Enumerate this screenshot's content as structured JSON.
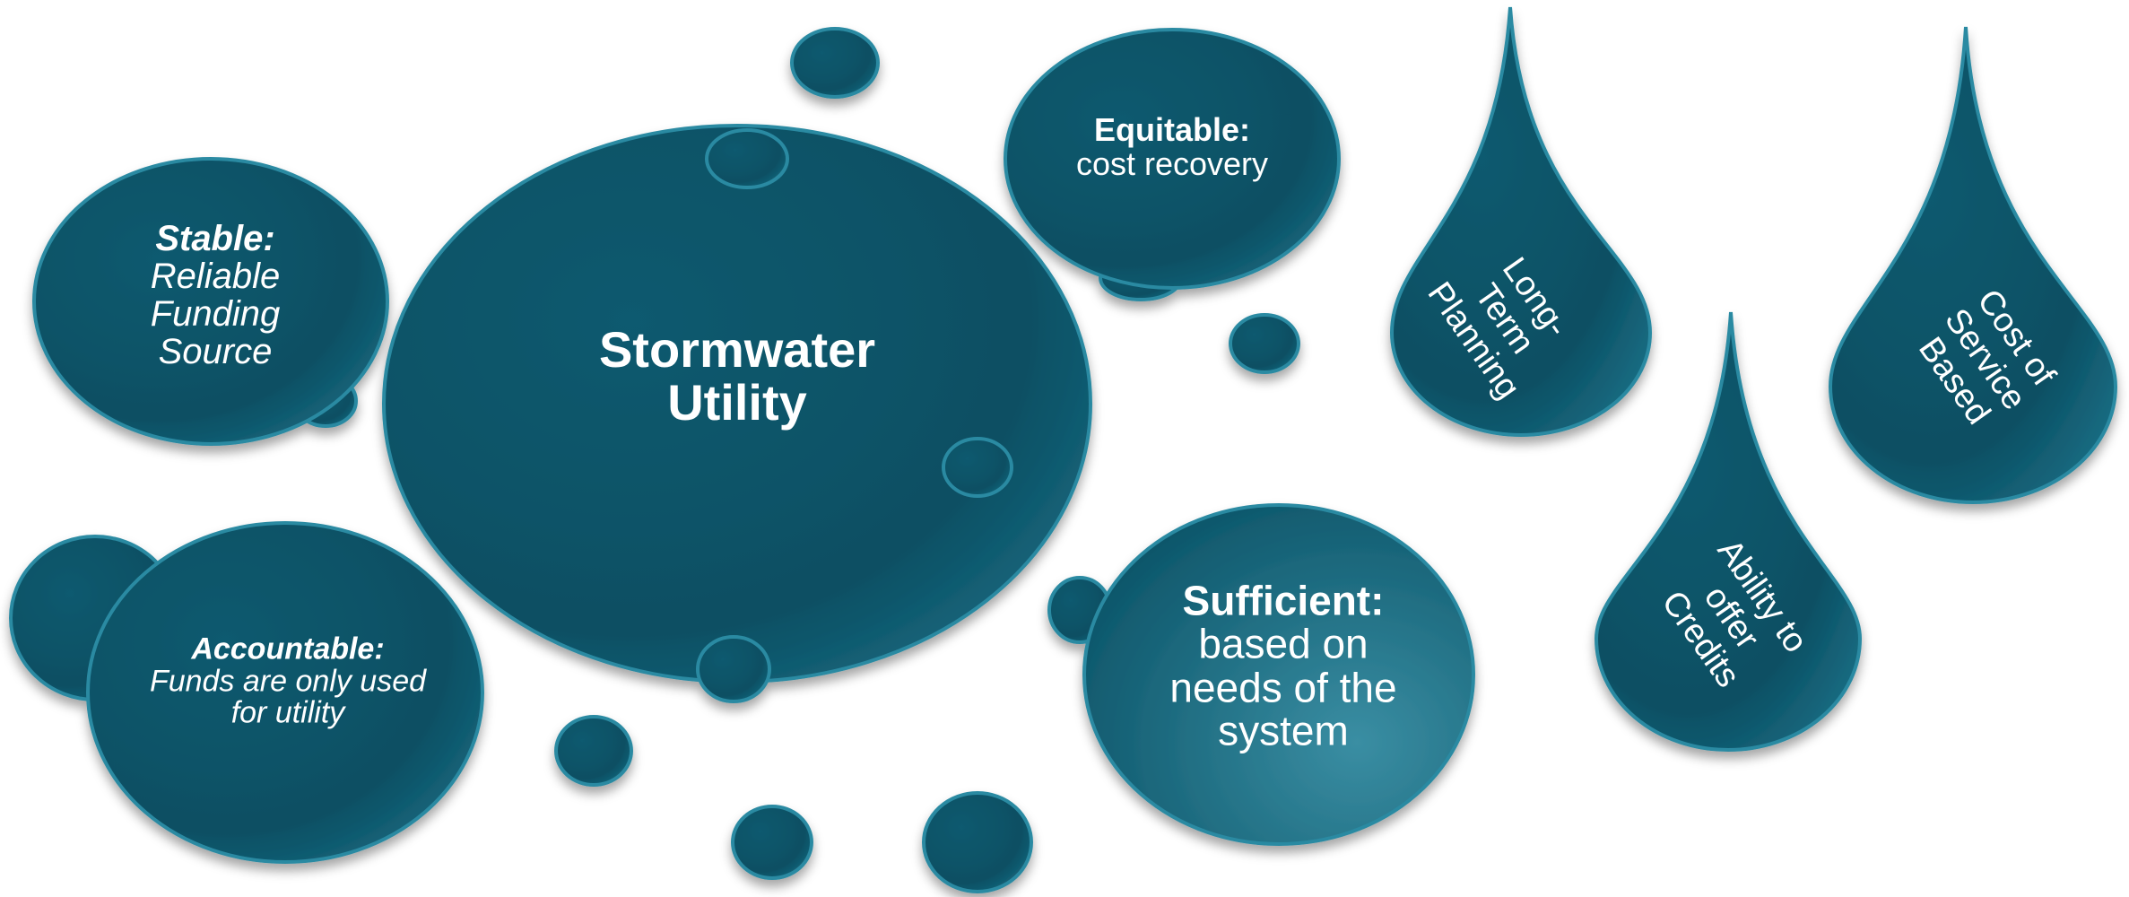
{
  "center": {
    "title": "Stormwater Utility"
  },
  "bubbles": [
    {
      "label": "Stable:",
      "text": "Reliable Funding Source"
    },
    {
      "label": "Equitable:",
      "text": "cost recovery"
    },
    {
      "label": "Accountable:",
      "text": "Funds are only used for utility"
    },
    {
      "label": "Sufficient:",
      "text": "based on needs of the system"
    }
  ],
  "drops": [
    "Long-Term Planning",
    "Cost of Service Based",
    "Ability to offer Credits"
  ]
}
